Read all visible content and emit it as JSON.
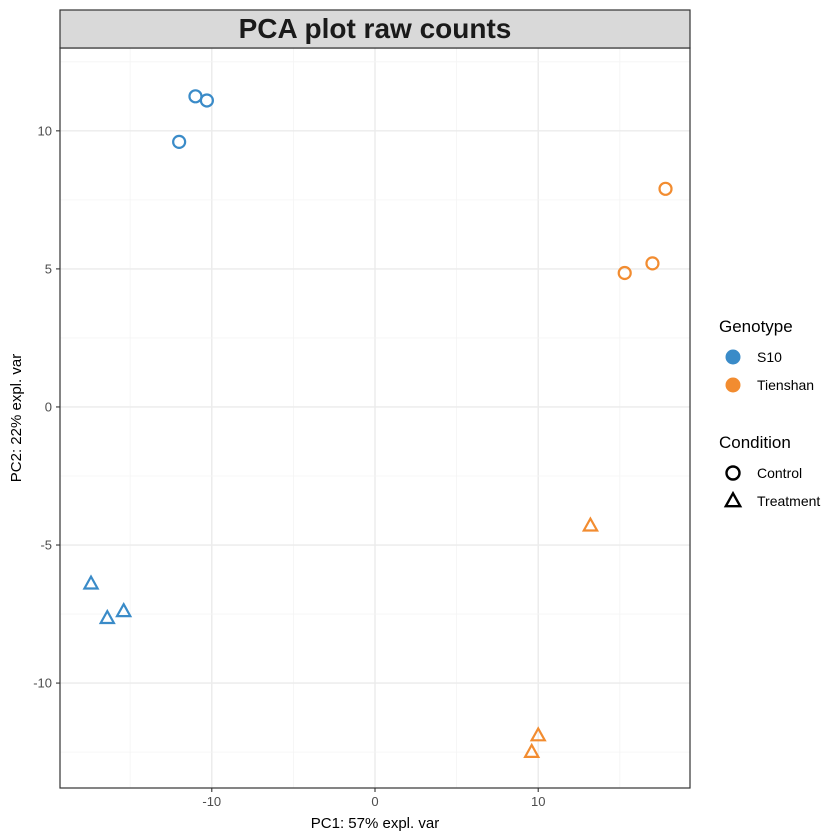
{
  "chart_data": {
    "type": "scatter",
    "title": "PCA plot raw counts",
    "xlabel": "PC1: 57% expl. var",
    "ylabel": "PC2: 22% expl. var",
    "xlim": [
      -19.3,
      19.3
    ],
    "ylim": [
      -13.8,
      13.0
    ],
    "x_ticks": [
      -10,
      0,
      10
    ],
    "y_ticks": [
      -10,
      -5,
      0,
      5,
      10
    ],
    "x_tick_labels": [
      "-10",
      "0",
      "10"
    ],
    "y_tick_labels": [
      "-10",
      "-5",
      "0",
      "5",
      "10"
    ],
    "grid": true,
    "legend_position": "right",
    "legends": [
      {
        "title": "Genotype",
        "kind": "color",
        "entries": [
          {
            "label": "S10",
            "color": "#3a8bc8"
          },
          {
            "label": "Tienshan",
            "color": "#f28c30"
          }
        ]
      },
      {
        "title": "Condition",
        "kind": "shape",
        "entries": [
          {
            "label": "Control",
            "shape": "circle"
          },
          {
            "label": "Treatment",
            "shape": "triangle"
          }
        ]
      }
    ],
    "points": [
      {
        "x": -11.0,
        "y": 11.25,
        "genotype": "S10",
        "condition": "Control"
      },
      {
        "x": -10.3,
        "y": 11.1,
        "genotype": "S10",
        "condition": "Control"
      },
      {
        "x": -12.0,
        "y": 9.6,
        "genotype": "S10",
        "condition": "Control"
      },
      {
        "x": 15.3,
        "y": 4.85,
        "genotype": "Tienshan",
        "condition": "Control"
      },
      {
        "x": 17.0,
        "y": 5.2,
        "genotype": "Tienshan",
        "condition": "Control"
      },
      {
        "x": 17.8,
        "y": 7.9,
        "genotype": "Tienshan",
        "condition": "Control"
      },
      {
        "x": -17.4,
        "y": -6.4,
        "genotype": "S10",
        "condition": "Treatment"
      },
      {
        "x": -16.4,
        "y": -7.65,
        "genotype": "S10",
        "condition": "Treatment"
      },
      {
        "x": -15.4,
        "y": -7.4,
        "genotype": "S10",
        "condition": "Treatment"
      },
      {
        "x": 13.2,
        "y": -4.3,
        "genotype": "Tienshan",
        "condition": "Treatment"
      },
      {
        "x": 10.0,
        "y": -11.9,
        "genotype": "Tienshan",
        "condition": "Treatment"
      },
      {
        "x": 9.6,
        "y": -12.5,
        "genotype": "Tienshan",
        "condition": "Treatment"
      }
    ]
  }
}
